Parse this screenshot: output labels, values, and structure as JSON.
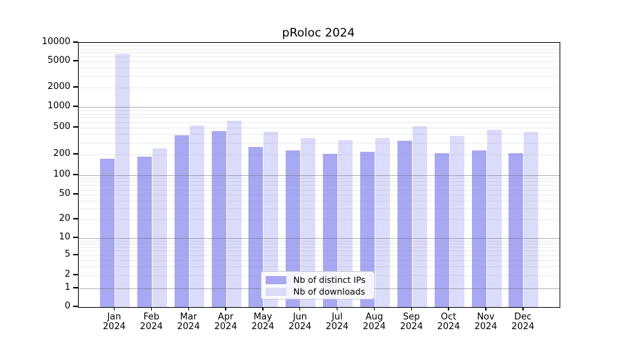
{
  "chart_data": {
    "type": "bar",
    "title": "pRoloc 2024",
    "categories": [
      "Jan",
      "Feb",
      "Mar",
      "Apr",
      "May",
      "Jun",
      "Jul",
      "Aug",
      "Sep",
      "Oct",
      "Nov",
      "Dec"
    ],
    "x_tick_year": "2024",
    "series": [
      {
        "name": "Nb of distinct IPs",
        "color": "#a8a8f3",
        "values": [
          175,
          185,
          385,
          450,
          260,
          230,
          205,
          220,
          320,
          210,
          230,
          210
        ]
      },
      {
        "name": "Nb of downloads",
        "color": "#dbdbfa",
        "values": [
          6600,
          250,
          530,
          630,
          430,
          350,
          330,
          350,
          520,
          380,
          470,
          430
        ]
      }
    ],
    "y_ticks": [
      0,
      1,
      2,
      5,
      10,
      20,
      50,
      100,
      200,
      500,
      1000,
      2000,
      5000,
      10000
    ],
    "ylim": [
      0,
      10000
    ],
    "yscale": "log-like (0 baseline)",
    "grid": true,
    "legend_position": "inside bottom-center",
    "axis_color": "#000000",
    "major_grid_values": [
      1,
      10,
      100,
      1000
    ],
    "background": "#ffffff"
  }
}
